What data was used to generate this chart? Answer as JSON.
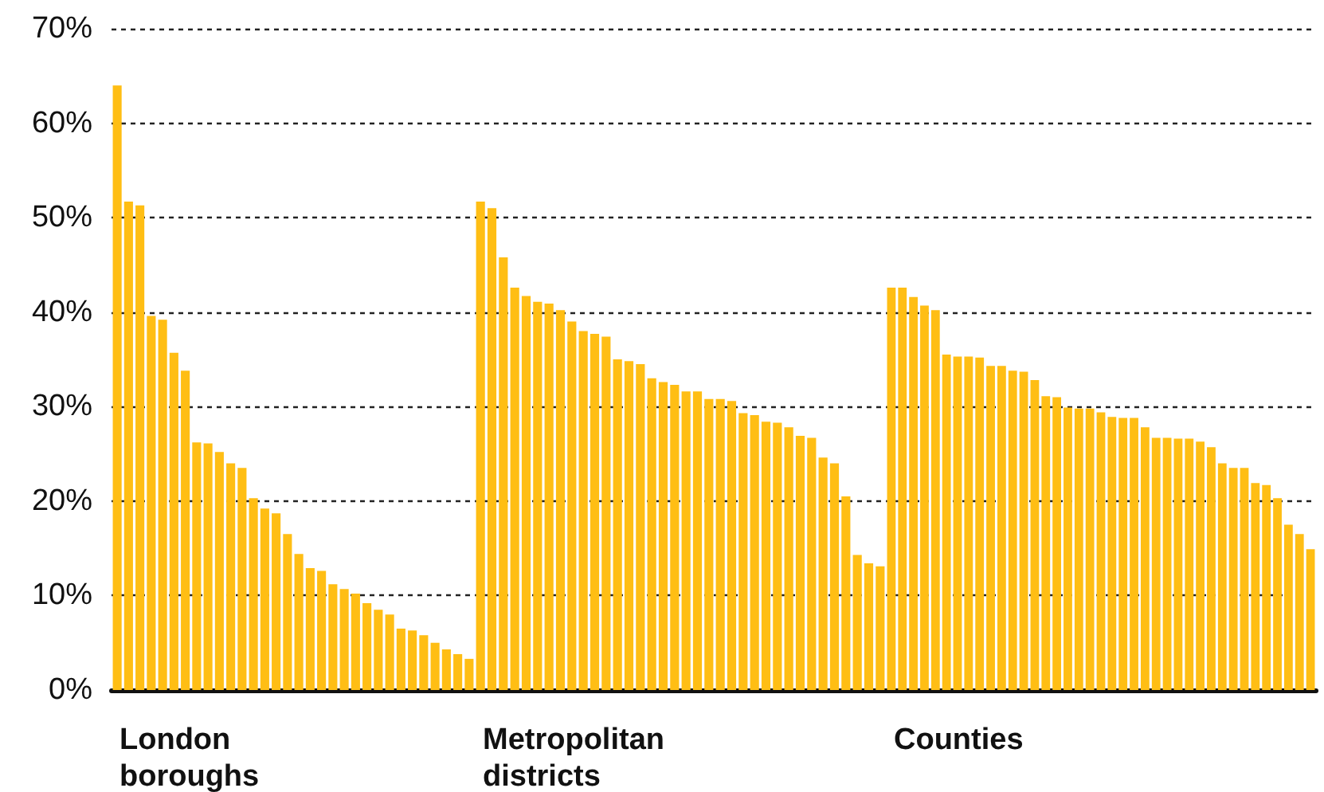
{
  "chart_data": [
    {
      "type": "bar",
      "xlabel": "London boroughs",
      "categories": [
        null,
        null,
        null,
        null,
        null,
        null,
        null,
        null,
        null,
        null,
        null,
        null,
        null,
        null,
        null,
        null,
        null,
        null,
        null,
        null,
        null,
        null,
        null,
        null,
        null,
        null,
        null,
        null,
        null,
        null,
        null,
        null
      ],
      "values": [
        64.0,
        51.7,
        51.3,
        39.6,
        39.2,
        35.7,
        33.8,
        26.2,
        26.1,
        25.2,
        24.0,
        23.5,
        20.3,
        19.2,
        18.7,
        16.5,
        14.4,
        12.9,
        12.6,
        11.2,
        10.7,
        10.2,
        9.2,
        8.5,
        8.0,
        6.5,
        6.3,
        5.8,
        5.0,
        4.3,
        3.8,
        3.3
      ],
      "color": "#ffbe14",
      "ylim": [
        0,
        70
      ],
      "yticks": [
        {
          "value": 0,
          "label": "0%"
        },
        {
          "value": 10,
          "label": "10%"
        },
        {
          "value": 20,
          "label": "20%"
        },
        {
          "value": 30,
          "label": "30%"
        },
        {
          "value": 40,
          "label": "40%"
        },
        {
          "value": 50,
          "label": "50%"
        },
        {
          "value": 60,
          "label": "60%"
        },
        {
          "value": 70,
          "label": "70%"
        }
      ],
      "grid": "y",
      "tick_labels": "y"
    },
    {
      "type": "bar",
      "xlabel": "Metropolitan districts",
      "categories": [
        null,
        null,
        null,
        null,
        null,
        null,
        null,
        null,
        null,
        null,
        null,
        null,
        null,
        null,
        null,
        null,
        null,
        null,
        null,
        null,
        null,
        null,
        null,
        null,
        null,
        null,
        null,
        null,
        null,
        null,
        null,
        null,
        null,
        null,
        null,
        null
      ],
      "values": [
        51.7,
        51.0,
        45.8,
        42.6,
        41.7,
        41.1,
        40.9,
        40.2,
        39.0,
        38.0,
        37.7,
        37.4,
        35.0,
        34.8,
        34.5,
        33.0,
        32.6,
        32.3,
        31.6,
        31.6,
        30.8,
        30.8,
        30.6,
        29.3,
        29.1,
        28.4,
        28.3,
        27.8,
        26.9,
        26.7,
        24.6,
        24.0,
        20.5,
        14.3,
        13.4,
        13.1
      ],
      "color": "#ffbe14",
      "ylim": [
        0,
        70
      ],
      "yticks": [
        0,
        10,
        20,
        30,
        40,
        50,
        60,
        70
      ],
      "grid": "y",
      "tick_labels": false
    },
    {
      "type": "bar",
      "xlabel": "Counties",
      "categories": [
        null,
        null,
        null,
        null,
        null,
        null,
        null,
        null,
        null,
        null,
        null,
        null,
        null,
        null,
        null,
        null,
        null,
        null,
        null,
        null,
        null,
        null,
        null,
        null,
        null,
        null,
        null,
        null,
        null,
        null,
        null,
        null,
        null,
        null,
        null,
        null,
        null,
        null,
        null
      ],
      "values": [
        42.6,
        42.6,
        41.6,
        40.7,
        40.2,
        35.5,
        35.3,
        35.3,
        35.2,
        34.3,
        34.3,
        33.8,
        33.7,
        32.8,
        31.1,
        31.0,
        29.9,
        29.8,
        29.8,
        29.4,
        28.9,
        28.8,
        28.8,
        27.8,
        26.7,
        26.7,
        26.6,
        26.6,
        26.3,
        25.7,
        24.0,
        23.5,
        23.5,
        21.9,
        21.7,
        20.3,
        17.5,
        16.5,
        14.9
      ],
      "color": "#ffbe14",
      "ylim": [
        0,
        70
      ],
      "yticks": [
        0,
        10,
        20,
        30,
        40,
        50,
        60,
        70
      ],
      "grid": "y",
      "tick_labels": false
    }
  ]
}
